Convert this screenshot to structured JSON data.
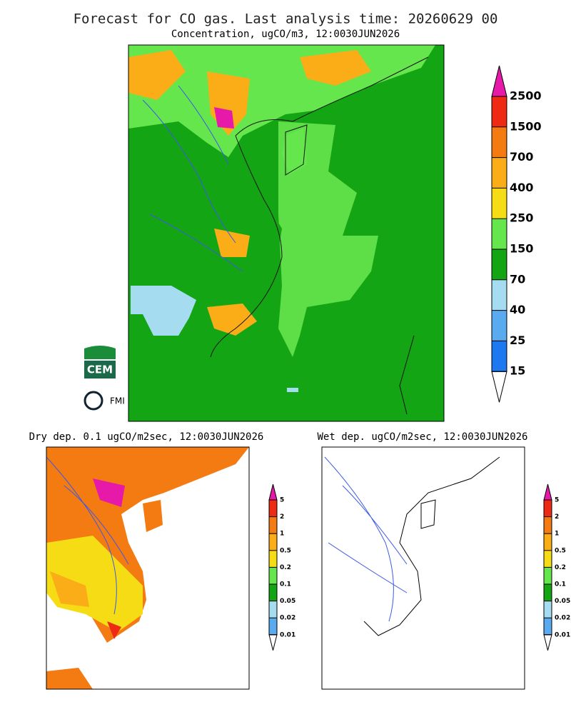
{
  "header": {
    "title": "Forecast for CO gas. Last analysis time: 20260629 00"
  },
  "panels": [
    {
      "subtitle": "Concentration, ugCO/m3, 12:0030JUN2026",
      "colorbar": {
        "labels": [
          2500,
          1500,
          700,
          400,
          250,
          150,
          70,
          40,
          25,
          15
        ],
        "top_color": "#e619a8",
        "colors": [
          "#ee2a14",
          "#f47a12",
          "#fbad18",
          "#f5dc14",
          "#66e64d",
          "#14a514",
          "#a5dcf0",
          "#5aaaf0",
          "#1e78f0"
        ],
        "bottom_color": "#ffffff"
      }
    },
    {
      "subtitle": "Dry dep. 0.1 ugCO/m2sec, 12:0030JUN2026",
      "colorbar": {
        "labels": [
          5,
          2,
          1,
          0.5,
          0.2,
          0.1,
          0.05,
          0.02,
          0.01
        ],
        "top_color": "#e619a8",
        "colors": [
          "#ee2a14",
          "#f47a12",
          "#fbad18",
          "#f5dc14",
          "#66e64d",
          "#14a514",
          "#a5dcf0",
          "#5aaaf0"
        ],
        "bottom_color": "#ffffff"
      }
    },
    {
      "subtitle": "Wet dep. ugCO/m2sec, 12:0030JUN2026",
      "colorbar": {
        "labels": [
          5,
          2,
          1,
          0.5,
          0.2,
          0.1,
          0.05,
          0.02,
          0.01
        ],
        "top_color": "#e619a8",
        "colors": [
          "#ee2a14",
          "#f47a12",
          "#fbad18",
          "#f5dc14",
          "#66e64d",
          "#14a514",
          "#a5dcf0",
          "#5aaaf0"
        ],
        "bottom_color": "#ffffff"
      }
    }
  ],
  "logos": {
    "cem": "CEM",
    "fmi": "FMI"
  }
}
